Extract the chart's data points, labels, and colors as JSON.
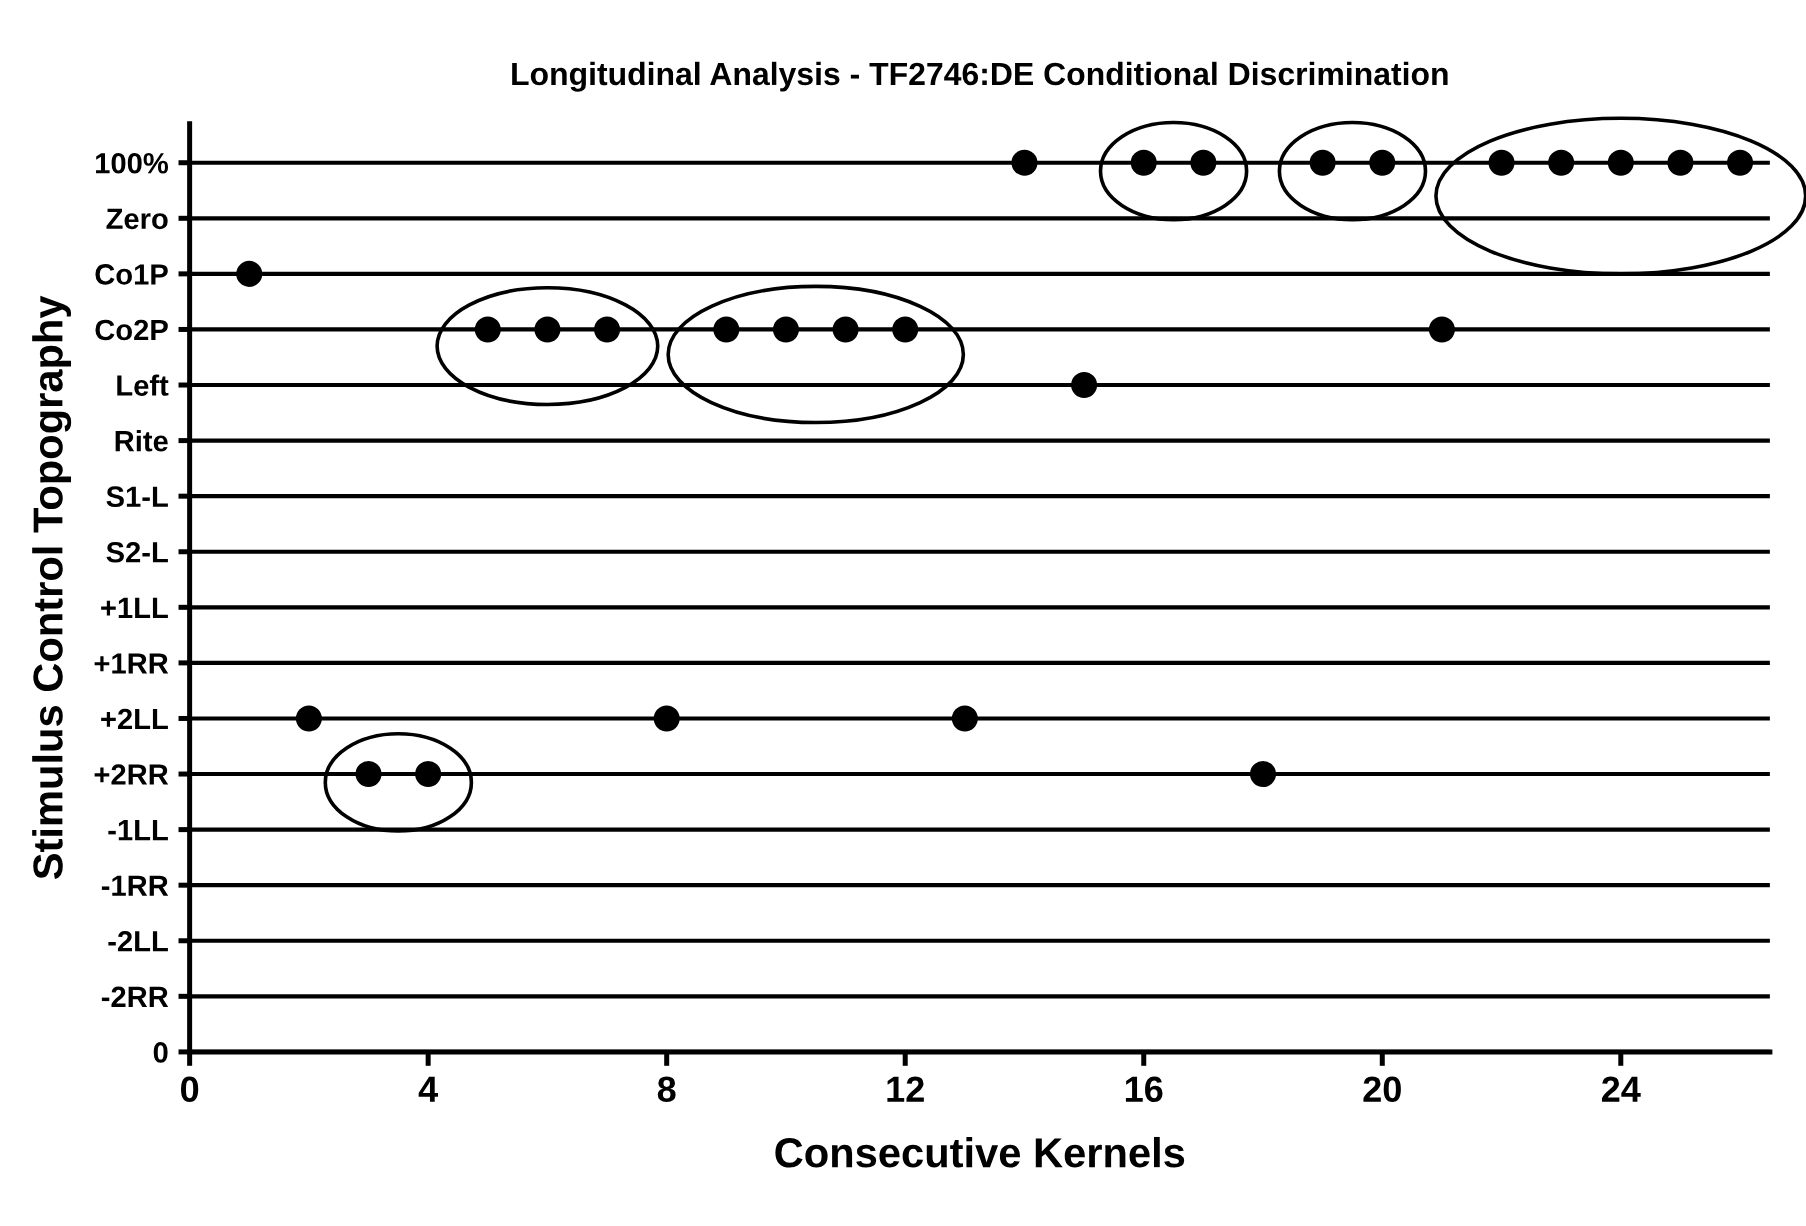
{
  "chart_data": {
    "type": "scatter",
    "title": "Longitudinal Analysis - TF2746:DE Conditional Discrimination",
    "xlabel": "Consecutive Kernels",
    "ylabel": "Stimulus Control Topography",
    "orientation": "horizontal",
    "categories": [
      "100%",
      "Zero",
      "Co1P",
      "Co2P",
      "Left",
      "Rite",
      "S1-L",
      "S2-L",
      "+1LL",
      "+1RR",
      "+2LL",
      "+2RR",
      "-1LL",
      "-1RR",
      "-2LL",
      "-2RR",
      "0"
    ],
    "series": [
      {
        "color": "#000000",
        "x": [
          "Co1P",
          "+2LL",
          "+2RR",
          "+2RR",
          "Co2P",
          "Co2P",
          "Co2P",
          "+2LL",
          "Co2P",
          "Co2P",
          "Co2P",
          "Co2P",
          "+2LL",
          "100%",
          "Left",
          "100%",
          "100%",
          "+2RR",
          "100%",
          "100%",
          "Co2P",
          "100%",
          "100%",
          "100%",
          "100%",
          "100%"
        ],
        "values": [
          1,
          2,
          3,
          4,
          5,
          6,
          7,
          8,
          9,
          10,
          11,
          12,
          13,
          14,
          15,
          16,
          17,
          18,
          19,
          20,
          21,
          22,
          23,
          24,
          25,
          26
        ]
      }
    ],
    "marker": "circle",
    "xlim": [
      0,
      26.5
    ],
    "xticks": [
      0,
      4,
      8,
      12,
      16,
      20,
      24
    ],
    "grid": "y"
  }
}
